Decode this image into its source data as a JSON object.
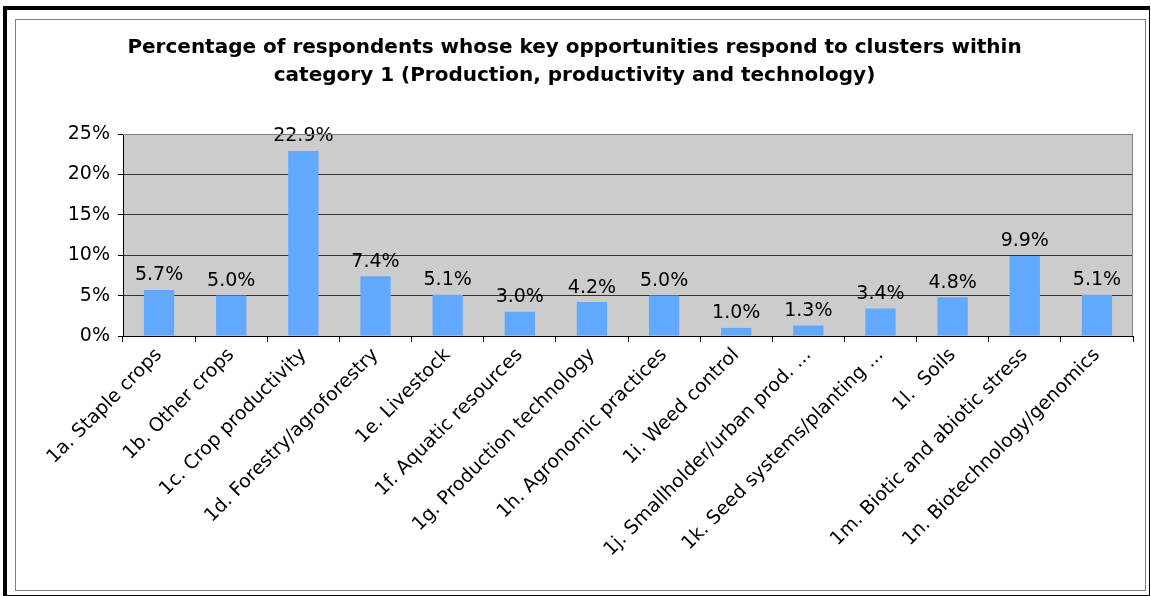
{
  "chart_data": {
    "type": "bar",
    "title": "Percentage of respondents whose key opportunities respond to clusters within category 1 (Production, productivity and technology)",
    "categories": [
      "1a. Staple crops",
      "1b. Other crops",
      "1c. Crop productivity",
      "1d. Forestry/agroforestry",
      "1e. Livestock",
      "1f. Aquatic resources",
      "1g. Production technology",
      "1h. Agronomic practices",
      "1i. Weed control",
      "1j. Smallholder/urban prod. ...",
      "1k. Seed systems/planting ...",
      "1l.  Soils",
      "1m. Biotic and abiotic stress",
      "1n. Biotechnology/genomics"
    ],
    "values": [
      5.7,
      5.0,
      22.9,
      7.4,
      5.1,
      3.0,
      4.2,
      5.0,
      1.0,
      1.3,
      3.4,
      4.8,
      9.9,
      5.1
    ],
    "value_labels": [
      "5.7%",
      "5.0%",
      "22.9%",
      "7.4%",
      "5.1%",
      "3.0%",
      "4.2%",
      "5.0%",
      "1.0%",
      "1.3%",
      "3.4%",
      "4.8%",
      "9.9%",
      "5.1%"
    ],
    "color": "#63a8ff",
    "ylim": [
      0,
      25
    ],
    "yticks": [
      {
        "value": 0,
        "label": "0%"
      },
      {
        "value": 5,
        "label": "5%"
      },
      {
        "value": 10,
        "label": "10%"
      },
      {
        "value": 15,
        "label": "15%"
      },
      {
        "value": 20,
        "label": "20%"
      },
      {
        "value": 25,
        "label": "25%"
      }
    ],
    "grid": "y"
  }
}
